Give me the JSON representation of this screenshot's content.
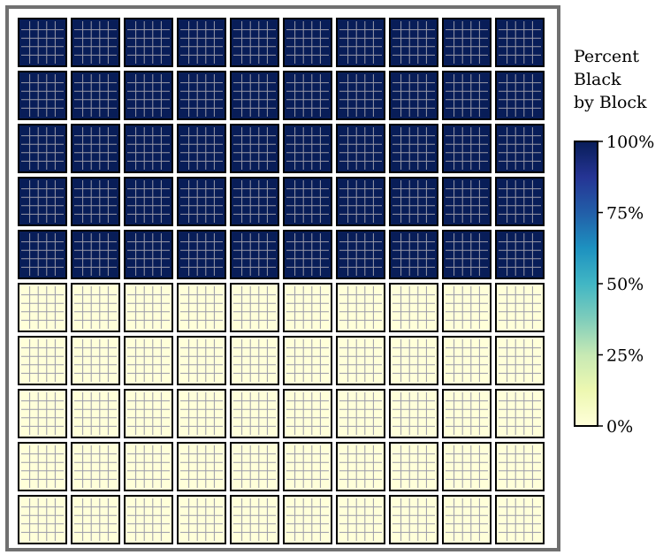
{
  "chart_data": {
    "type": "heatmap",
    "grid": {
      "rows": 10,
      "cols": 10,
      "subgrid_rows": 5,
      "subgrid_cols": 5
    },
    "values": [
      [
        100,
        100,
        100,
        100,
        100,
        100,
        100,
        100,
        100,
        100
      ],
      [
        100,
        100,
        100,
        100,
        100,
        100,
        100,
        100,
        100,
        100
      ],
      [
        100,
        100,
        100,
        100,
        100,
        100,
        100,
        100,
        100,
        100
      ],
      [
        100,
        100,
        100,
        100,
        100,
        100,
        100,
        100,
        100,
        100
      ],
      [
        100,
        100,
        100,
        100,
        100,
        100,
        100,
        100,
        100,
        100
      ],
      [
        0,
        0,
        0,
        0,
        0,
        0,
        0,
        0,
        0,
        0
      ],
      [
        0,
        0,
        0,
        0,
        0,
        0,
        0,
        0,
        0,
        0
      ],
      [
        0,
        0,
        0,
        0,
        0,
        0,
        0,
        0,
        0,
        0
      ],
      [
        0,
        0,
        0,
        0,
        0,
        0,
        0,
        0,
        0,
        0
      ],
      [
        0,
        0,
        0,
        0,
        0,
        0,
        0,
        0,
        0,
        0
      ]
    ],
    "colorbar": {
      "title_lines": [
        "Percent",
        "Black",
        "by Block"
      ],
      "ticks": [
        {
          "value": 100,
          "label": "100%"
        },
        {
          "value": 75,
          "label": "75%"
        },
        {
          "value": 50,
          "label": "50%"
        },
        {
          "value": 25,
          "label": "25%"
        },
        {
          "value": 0,
          "label": "0%"
        }
      ],
      "range": [
        0,
        100
      ],
      "colormap": "YlGnBu",
      "stops": [
        "#ffffd9",
        "#edf8b1",
        "#c7e9b4",
        "#7fcdbb",
        "#41b6c4",
        "#1d91c0",
        "#225ea8",
        "#253494",
        "#081d58"
      ]
    },
    "colors": {
      "frame": "#707070",
      "block_border": "#000000",
      "street": "#ffffff",
      "subgrid_line": "#9a9aa8"
    }
  }
}
